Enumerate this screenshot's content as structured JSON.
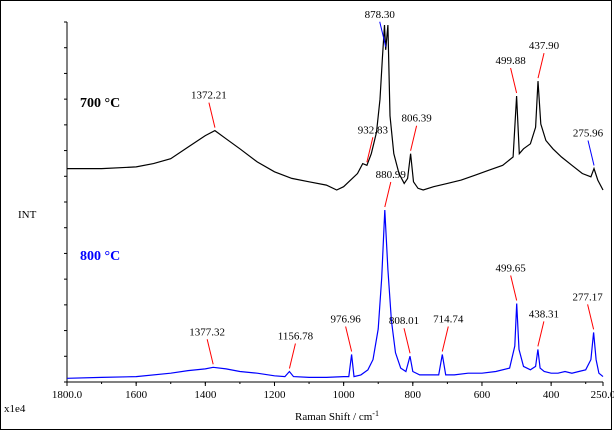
{
  "chart_data": {
    "type": "line",
    "xlabel": "Raman Shift / cm",
    "xlabel_superscript": "-1",
    "ylabel": "INT",
    "y_scale_label": "x1e4",
    "x_axis": {
      "reversed": true,
      "xlim": [
        1800,
        250
      ]
    },
    "x_ticks": [
      "1800.0",
      "1600",
      "1400",
      "1200",
      "1000",
      "800",
      "600",
      "400",
      "250.0"
    ],
    "x_tick_values": [
      1800,
      1600,
      1400,
      1200,
      1000,
      800,
      600,
      400,
      250
    ],
    "series": [
      {
        "name": "700 °C",
        "color": "#000000",
        "label_color": "#000000",
        "points": [
          [
            1800,
            0.13
          ],
          [
            1700,
            0.13
          ],
          [
            1600,
            0.14
          ],
          [
            1550,
            0.16
          ],
          [
            1500,
            0.19
          ],
          [
            1450,
            0.26
          ],
          [
            1400,
            0.33
          ],
          [
            1372.21,
            0.36
          ],
          [
            1340,
            0.31
          ],
          [
            1300,
            0.25
          ],
          [
            1250,
            0.17
          ],
          [
            1200,
            0.11
          ],
          [
            1150,
            0.07
          ],
          [
            1100,
            0.05
          ],
          [
            1050,
            0.03
          ],
          [
            1020,
            0.0
          ],
          [
            1000,
            0.02
          ],
          [
            980,
            0.06
          ],
          [
            960,
            0.1
          ],
          [
            945,
            0.16
          ],
          [
            932.83,
            0.15
          ],
          [
            920,
            0.22
          ],
          [
            905,
            0.35
          ],
          [
            895,
            0.55
          ],
          [
            888,
            0.8
          ],
          [
            882,
            1.0
          ],
          [
            878.3,
            0.85
          ],
          [
            872,
            1.0
          ],
          [
            866,
            0.45
          ],
          [
            855,
            0.22
          ],
          [
            840,
            0.1
          ],
          [
            825,
            0.04
          ],
          [
            815,
            0.07
          ],
          [
            806.39,
            0.22
          ],
          [
            798,
            0.05
          ],
          [
            785,
            0.01
          ],
          [
            770,
            0.0
          ],
          [
            740,
            0.02
          ],
          [
            700,
            0.04
          ],
          [
            660,
            0.06
          ],
          [
            620,
            0.09
          ],
          [
            580,
            0.12
          ],
          [
            540,
            0.15
          ],
          [
            510,
            0.2
          ],
          [
            499.88,
            0.57
          ],
          [
            492,
            0.22
          ],
          [
            480,
            0.25
          ],
          [
            460,
            0.28
          ],
          [
            445,
            0.38
          ],
          [
            437.9,
            0.66
          ],
          [
            430,
            0.4
          ],
          [
            415,
            0.3
          ],
          [
            395,
            0.25
          ],
          [
            370,
            0.2
          ],
          [
            340,
            0.15
          ],
          [
            310,
            0.1
          ],
          [
            285,
            0.08
          ],
          [
            275.96,
            0.13
          ],
          [
            265,
            0.06
          ],
          [
            250,
            0.0
          ]
        ],
        "peak_labels": [
          {
            "x": 1372.21,
            "text": "1372.21",
            "stroke": "#ff0000"
          },
          {
            "x": 932.83,
            "text": "932.83",
            "stroke": "#ff0000"
          },
          {
            "x": 878.3,
            "text": "878.30",
            "stroke": "#0000ff"
          },
          {
            "x": 806.39,
            "text": "806.39",
            "stroke": "#ff0000"
          },
          {
            "x": 499.88,
            "text": "499.88",
            "stroke": "#ff0000"
          },
          {
            "x": 437.9,
            "text": "437.90",
            "stroke": "#ff0000"
          },
          {
            "x": 275.96,
            "text": "275.96",
            "stroke": "#0000ff"
          }
        ]
      },
      {
        "name": "800 °C",
        "color": "#0000ff",
        "label_color": "#0000ff",
        "points": [
          [
            1800,
            0.01
          ],
          [
            1700,
            0.015
          ],
          [
            1600,
            0.02
          ],
          [
            1500,
            0.04
          ],
          [
            1450,
            0.055
          ],
          [
            1400,
            0.065
          ],
          [
            1377.32,
            0.075
          ],
          [
            1340,
            0.065
          ],
          [
            1300,
            0.05
          ],
          [
            1250,
            0.04
          ],
          [
            1200,
            0.025
          ],
          [
            1170,
            0.02
          ],
          [
            1156.78,
            0.05
          ],
          [
            1145,
            0.02
          ],
          [
            1100,
            0.015
          ],
          [
            1050,
            0.015
          ],
          [
            1000,
            0.02
          ],
          [
            985,
            0.02
          ],
          [
            976.96,
            0.15
          ],
          [
            970,
            0.02
          ],
          [
            950,
            0.03
          ],
          [
            930,
            0.06
          ],
          [
            915,
            0.12
          ],
          [
            900,
            0.3
          ],
          [
            890,
            0.6
          ],
          [
            880.99,
            1.0
          ],
          [
            872,
            0.65
          ],
          [
            862,
            0.35
          ],
          [
            850,
            0.16
          ],
          [
            835,
            0.07
          ],
          [
            820,
            0.05
          ],
          [
            808.01,
            0.14
          ],
          [
            800,
            0.05
          ],
          [
            780,
            0.03
          ],
          [
            750,
            0.03
          ],
          [
            725,
            0.03
          ],
          [
            714.74,
            0.15
          ],
          [
            705,
            0.03
          ],
          [
            680,
            0.03
          ],
          [
            640,
            0.04
          ],
          [
            600,
            0.04
          ],
          [
            560,
            0.05
          ],
          [
            520,
            0.07
          ],
          [
            505,
            0.2
          ],
          [
            499.65,
            0.45
          ],
          [
            493,
            0.18
          ],
          [
            480,
            0.08
          ],
          [
            460,
            0.06
          ],
          [
            445,
            0.08
          ],
          [
            438.31,
            0.18
          ],
          [
            432,
            0.07
          ],
          [
            420,
            0.05
          ],
          [
            400,
            0.04
          ],
          [
            380,
            0.04
          ],
          [
            360,
            0.05
          ],
          [
            340,
            0.04
          ],
          [
            320,
            0.05
          ],
          [
            300,
            0.06
          ],
          [
            285,
            0.12
          ],
          [
            277.17,
            0.28
          ],
          [
            270,
            0.12
          ],
          [
            262,
            0.04
          ],
          [
            250,
            0.02
          ]
        ],
        "peak_labels": [
          {
            "x": 1377.32,
            "text": "1377.32",
            "stroke": "#ff0000"
          },
          {
            "x": 1156.78,
            "text": "1156.78",
            "stroke": "#ff0000"
          },
          {
            "x": 976.96,
            "text": "976.96",
            "stroke": "#ff0000"
          },
          {
            "x": 880.99,
            "text": "880.99",
            "stroke": "#ff0000"
          },
          {
            "x": 808.01,
            "text": "808.01",
            "stroke": "#ff0000"
          },
          {
            "x": 714.74,
            "text": "714.74",
            "stroke": "#ff0000"
          },
          {
            "x": 499.65,
            "text": "499.65",
            "stroke": "#ff0000"
          },
          {
            "x": 438.31,
            "text": "438.31",
            "stroke": "#ff0000"
          },
          {
            "x": 277.17,
            "text": "277.17",
            "stroke": "#ff0000"
          }
        ]
      }
    ]
  }
}
